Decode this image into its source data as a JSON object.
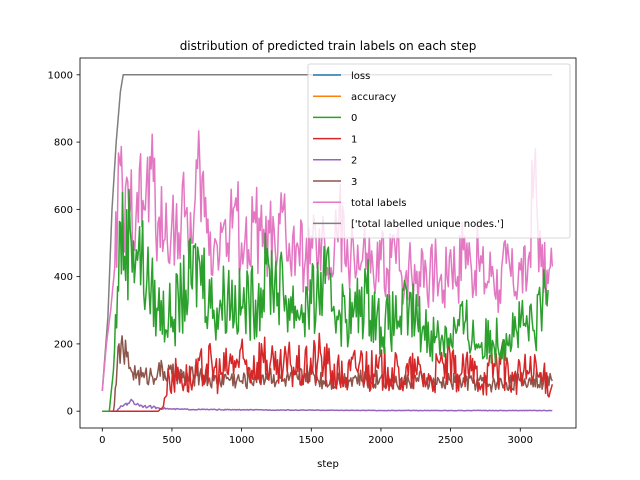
{
  "chart_data": {
    "type": "line",
    "title": "distribution of predicted train labels on each step",
    "xlabel": "step",
    "ylabel": "",
    "xlim": [
      -160,
      3400
    ],
    "ylim": [
      -50,
      1050
    ],
    "x_ticks": [
      0,
      500,
      1000,
      1500,
      2000,
      2500,
      3000
    ],
    "y_ticks": [
      0,
      200,
      400,
      600,
      800,
      1000
    ],
    "grid": false,
    "legend_position": "upper right",
    "series": [
      {
        "name": "loss",
        "color": "#1f77b4",
        "points": []
      },
      {
        "name": "accuracy",
        "color": "#ff7f0e",
        "points": []
      },
      {
        "name": "0",
        "color": "#2ca02c",
        "points": [
          [
            0,
            0
          ],
          [
            50,
            0
          ],
          [
            80,
            120
          ],
          [
            110,
            370
          ],
          [
            130,
            560
          ],
          [
            160,
            460
          ],
          [
            200,
            540
          ],
          [
            260,
            480
          ],
          [
            320,
            390
          ],
          [
            400,
            300
          ],
          [
            500,
            280
          ],
          [
            600,
            360
          ],
          [
            700,
            440
          ],
          [
            800,
            300
          ],
          [
            900,
            350
          ],
          [
            1000,
            310
          ],
          [
            1100,
            330
          ],
          [
            1200,
            420
          ],
          [
            1300,
            350
          ],
          [
            1400,
            300
          ],
          [
            1500,
            320
          ],
          [
            1600,
            380
          ],
          [
            1700,
            300
          ],
          [
            1800,
            280
          ],
          [
            1900,
            350
          ],
          [
            2000,
            250
          ],
          [
            2100,
            270
          ],
          [
            2200,
            300
          ],
          [
            2300,
            250
          ],
          [
            2400,
            220
          ],
          [
            2500,
            230
          ],
          [
            2600,
            260
          ],
          [
            2700,
            200
          ],
          [
            2800,
            210
          ],
          [
            2900,
            230
          ],
          [
            3000,
            250
          ],
          [
            3100,
            240
          ],
          [
            3200,
            360
          ]
        ]
      },
      {
        "name": "1",
        "color": "#d62728",
        "points": [
          [
            0,
            0
          ],
          [
            400,
            0
          ],
          [
            430,
            10
          ],
          [
            480,
            100
          ],
          [
            550,
            110
          ],
          [
            650,
            90
          ],
          [
            750,
            140
          ],
          [
            850,
            110
          ],
          [
            950,
            150
          ],
          [
            1050,
            130
          ],
          [
            1150,
            170
          ],
          [
            1250,
            110
          ],
          [
            1350,
            140
          ],
          [
            1450,
            120
          ],
          [
            1550,
            160
          ],
          [
            1650,
            120
          ],
          [
            1750,
            100
          ],
          [
            1850,
            150
          ],
          [
            1950,
            110
          ],
          [
            2050,
            130
          ],
          [
            2150,
            100
          ],
          [
            2250,
            120
          ],
          [
            2350,
            90
          ],
          [
            2450,
            140
          ],
          [
            2550,
            110
          ],
          [
            2650,
            120
          ],
          [
            2750,
            100
          ],
          [
            2850,
            160
          ],
          [
            2950,
            90
          ],
          [
            3050,
            120
          ],
          [
            3150,
            100
          ],
          [
            3230,
            80
          ]
        ]
      },
      {
        "name": "2",
        "color": "#9467bd",
        "points": [
          [
            0,
            0
          ],
          [
            100,
            0
          ],
          [
            140,
            15
          ],
          [
            200,
            30
          ],
          [
            260,
            20
          ],
          [
            300,
            15
          ],
          [
            400,
            10
          ],
          [
            500,
            6
          ],
          [
            700,
            5
          ],
          [
            1000,
            4
          ],
          [
            1500,
            3
          ],
          [
            2000,
            2
          ],
          [
            2500,
            2
          ],
          [
            3000,
            2
          ],
          [
            3230,
            2
          ]
        ]
      },
      {
        "name": "3",
        "color": "#8c564b",
        "points": [
          [
            0,
            0
          ],
          [
            80,
            0
          ],
          [
            100,
            80
          ],
          [
            120,
            200
          ],
          [
            150,
            180
          ],
          [
            200,
            130
          ],
          [
            250,
            110
          ],
          [
            300,
            100
          ],
          [
            400,
            120
          ],
          [
            500,
            110
          ],
          [
            600,
            100
          ],
          [
            700,
            110
          ],
          [
            800,
            90
          ],
          [
            900,
            100
          ],
          [
            1000,
            90
          ],
          [
            1100,
            100
          ],
          [
            1200,
            110
          ],
          [
            1300,
            90
          ],
          [
            1400,
            100
          ],
          [
            1500,
            110
          ],
          [
            1600,
            90
          ],
          [
            1700,
            95
          ],
          [
            1800,
            100
          ],
          [
            1900,
            90
          ],
          [
            2000,
            100
          ],
          [
            2100,
            85
          ],
          [
            2200,
            90
          ],
          [
            2300,
            95
          ],
          [
            2400,
            80
          ],
          [
            2500,
            90
          ],
          [
            2600,
            85
          ],
          [
            2700,
            90
          ],
          [
            2800,
            80
          ],
          [
            2900,
            85
          ],
          [
            3000,
            90
          ],
          [
            3100,
            95
          ],
          [
            3230,
            90
          ]
        ]
      },
      {
        "name": "total labels",
        "color": "#e377c2",
        "points": [
          [
            0,
            60
          ],
          [
            30,
            200
          ],
          [
            60,
            300
          ],
          [
            90,
            430
          ],
          [
            110,
            600
          ],
          [
            130,
            730
          ],
          [
            150,
            560
          ],
          [
            200,
            600
          ],
          [
            250,
            650
          ],
          [
            300,
            600
          ],
          [
            350,
            720
          ],
          [
            400,
            560
          ],
          [
            450,
            510
          ],
          [
            500,
            570
          ],
          [
            550,
            530
          ],
          [
            600,
            590
          ],
          [
            650,
            500
          ],
          [
            700,
            740
          ],
          [
            750,
            530
          ],
          [
            800,
            480
          ],
          [
            850,
            560
          ],
          [
            900,
            500
          ],
          [
            950,
            610
          ],
          [
            1000,
            500
          ],
          [
            1050,
            480
          ],
          [
            1100,
            560
          ],
          [
            1150,
            490
          ],
          [
            1200,
            530
          ],
          [
            1250,
            430
          ],
          [
            1300,
            600
          ],
          [
            1350,
            440
          ],
          [
            1400,
            500
          ],
          [
            1450,
            420
          ],
          [
            1500,
            520
          ],
          [
            1550,
            440
          ],
          [
            1600,
            480
          ],
          [
            1650,
            400
          ],
          [
            1700,
            580
          ],
          [
            1750,
            430
          ],
          [
            1800,
            510
          ],
          [
            1850,
            420
          ],
          [
            1900,
            470
          ],
          [
            1950,
            380
          ],
          [
            2000,
            450
          ],
          [
            2050,
            420
          ],
          [
            2100,
            490
          ],
          [
            2150,
            400
          ],
          [
            2200,
            440
          ],
          [
            2250,
            380
          ],
          [
            2300,
            470
          ],
          [
            2350,
            400
          ],
          [
            2400,
            430
          ],
          [
            2450,
            360
          ],
          [
            2500,
            480
          ],
          [
            2550,
            400
          ],
          [
            2600,
            520
          ],
          [
            2650,
            420
          ],
          [
            2700,
            460
          ],
          [
            2750,
            380
          ],
          [
            2800,
            430
          ],
          [
            2850,
            360
          ],
          [
            2900,
            440
          ],
          [
            2950,
            380
          ],
          [
            3000,
            420
          ],
          [
            3050,
            390
          ],
          [
            3100,
            720
          ],
          [
            3150,
            430
          ],
          [
            3200,
            380
          ],
          [
            3230,
            430
          ]
        ]
      },
      {
        "name": "['total labelled unique nodes.']",
        "color": "#7f7f7f",
        "points": [
          [
            0,
            60
          ],
          [
            40,
            280
          ],
          [
            70,
            600
          ],
          [
            100,
            800
          ],
          [
            130,
            950
          ],
          [
            150,
            1000
          ],
          [
            3230,
            1000
          ]
        ]
      }
    ]
  }
}
